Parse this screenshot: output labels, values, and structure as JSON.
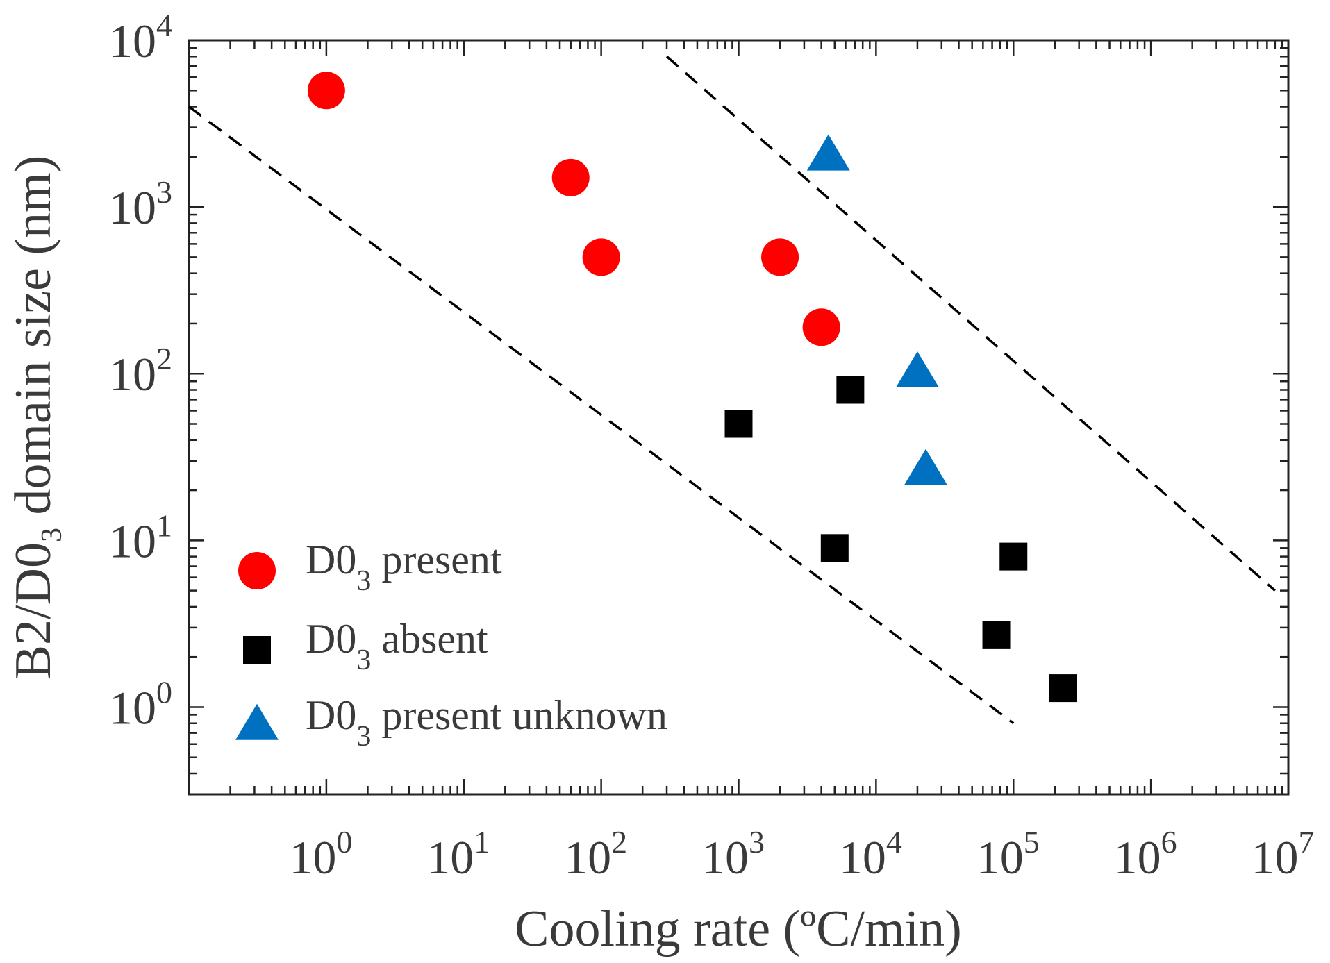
{
  "chart_data": {
    "type": "scatter",
    "xscale": "log",
    "yscale": "log",
    "xlim": [
      0.1,
      10000000
    ],
    "ylim": [
      0.3,
      10000
    ],
    "xlabel": "Cooling rate (ºC/min)",
    "ylabel": {
      "prefix": "B2/D0",
      "sub": "3",
      "suffix": " domain size (nm)"
    },
    "x_ticks": [
      {
        "value": 1,
        "base": "10",
        "exp": "0"
      },
      {
        "value": 10,
        "base": "10",
        "exp": "1"
      },
      {
        "value": 100,
        "base": "10",
        "exp": "2"
      },
      {
        "value": 1000,
        "base": "10",
        "exp": "3"
      },
      {
        "value": 10000,
        "base": "10",
        "exp": "4"
      },
      {
        "value": 100000,
        "base": "10",
        "exp": "5"
      },
      {
        "value": 1000000,
        "base": "10",
        "exp": "6"
      },
      {
        "value": 10000000,
        "base": "10",
        "exp": "7"
      }
    ],
    "y_ticks": [
      {
        "value": 1,
        "base": "10",
        "exp": "0"
      },
      {
        "value": 10,
        "base": "10",
        "exp": "1"
      },
      {
        "value": 100,
        "base": "10",
        "exp": "2"
      },
      {
        "value": 1000,
        "base": "10",
        "exp": "3"
      },
      {
        "value": 10000,
        "base": "10",
        "exp": "4"
      }
    ],
    "series": [
      {
        "name": {
          "prefix": "D0",
          "sub": "3",
          "suffix": " present"
        },
        "marker": "circle",
        "color": "#ff0000",
        "points": [
          {
            "x": 1,
            "y": 5000
          },
          {
            "x": 60,
            "y": 1500
          },
          {
            "x": 100,
            "y": 500
          },
          {
            "x": 2000,
            "y": 500
          },
          {
            "x": 4000,
            "y": 190
          }
        ]
      },
      {
        "name": {
          "prefix": "D0",
          "sub": "3",
          "suffix": " absent"
        },
        "marker": "square",
        "color": "#000000",
        "points": [
          {
            "x": 1000,
            "y": 50
          },
          {
            "x": 6500,
            "y": 80
          },
          {
            "x": 5000,
            "y": 9
          },
          {
            "x": 100000,
            "y": 8
          },
          {
            "x": 75000,
            "y": 2.7
          },
          {
            "x": 230000,
            "y": 1.3
          }
        ]
      },
      {
        "name": {
          "prefix": "D0",
          "sub": "3",
          "suffix": " present unknown"
        },
        "marker": "triangle",
        "color": "#0070c0",
        "points": [
          {
            "x": 4500,
            "y": 2000
          },
          {
            "x": 20000,
            "y": 100
          },
          {
            "x": 23000,
            "y": 26
          }
        ]
      }
    ],
    "reference_lines": [
      {
        "name": "lower-dashed-line",
        "from": {
          "x": 0.1,
          "y": 4000
        },
        "to": {
          "x": 100000,
          "y": 0.8
        }
      },
      {
        "name": "upper-dashed-line",
        "from": {
          "x": 300,
          "y": 8000
        },
        "to": {
          "x": 8000000,
          "y": 5
        }
      }
    ],
    "legend_position": "bottom-left",
    "grid": false
  }
}
